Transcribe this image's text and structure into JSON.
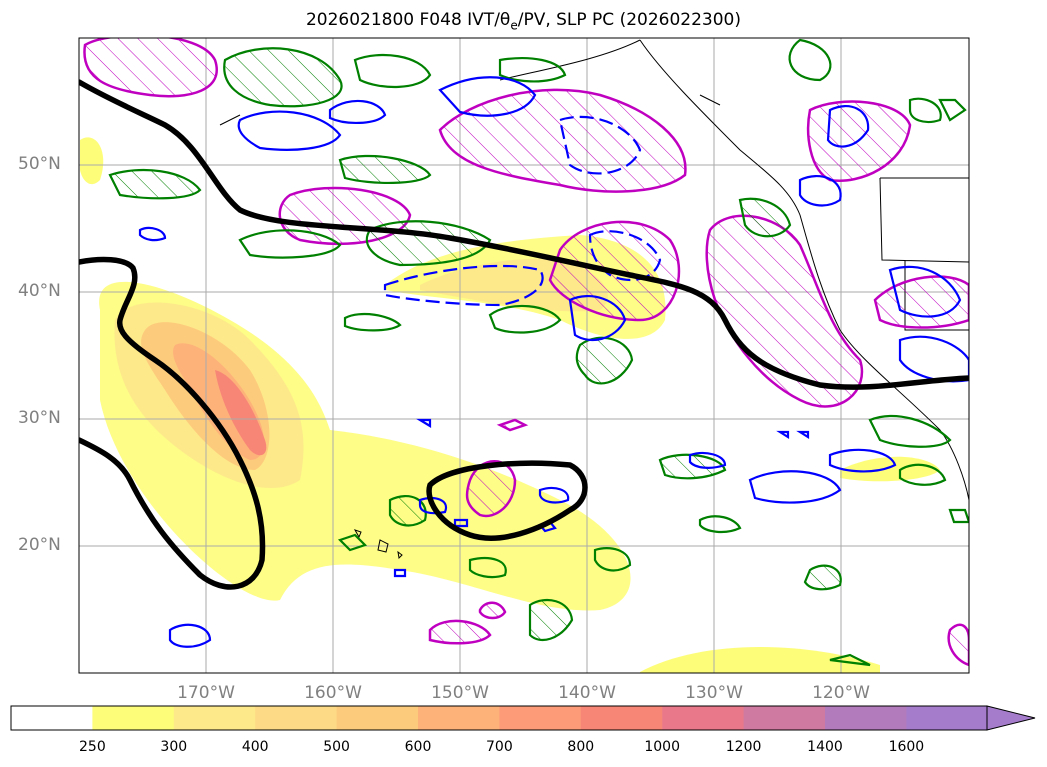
{
  "title": {
    "prefix": "2026021800 F048 IVT/",
    "theta": "θ",
    "theta_sub": "e",
    "suffix": "/PV, SLP PC (2026022300)"
  },
  "map": {
    "lon_range": [
      -180,
      -110
    ],
    "lat_range": [
      10,
      60
    ],
    "lat_ticks": [
      "50°N",
      "40°N",
      "30°N",
      "20°N"
    ],
    "lon_ticks": [
      "170°W",
      "160°W",
      "150°W",
      "140°W",
      "130°W",
      "120°W"
    ],
    "colors": {
      "green_contour": "#008000",
      "blue_contour": "#0000ff",
      "magenta_contour": "#c000c0",
      "black_contour": "#000000",
      "coast": "#000000",
      "grid": "#aaaaaa"
    }
  },
  "colorbar": {
    "ticks": [
      "250",
      "300",
      "400",
      "500",
      "600",
      "700",
      "800",
      "1000",
      "1200",
      "1400",
      "1600"
    ],
    "colors": [
      "#ffffff",
      "#fdfd7a",
      "#fde98a",
      "#fddb86",
      "#fdcb7c",
      "#fdb27a",
      "#fd9b78",
      "#f88676",
      "#e9798a",
      "#cf7aa0",
      "#b27cbc",
      "#a47ccb"
    ]
  }
}
